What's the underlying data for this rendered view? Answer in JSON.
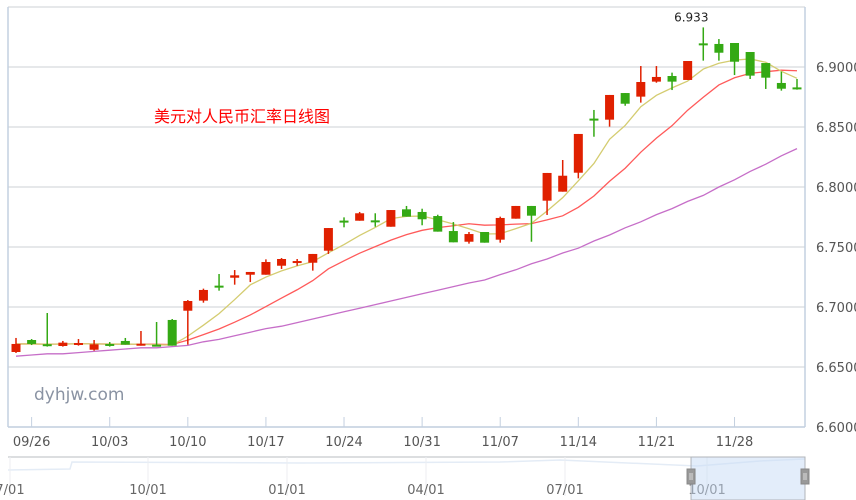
{
  "chart_data": {
    "type": "candlestick",
    "title": "美元对人民币汇率日线图",
    "watermark": "dyhjw.com",
    "ylim": [
      6.6,
      6.95
    ],
    "y_ticks": [
      "6.6000",
      "6.6500",
      "6.7000",
      "6.7500",
      "6.8000",
      "6.8500",
      "6.9000"
    ],
    "x_ticks": [
      "09/26",
      "10/03",
      "10/10",
      "10/17",
      "10/24",
      "10/31",
      "11/07",
      "11/14",
      "11/21",
      "11/28"
    ],
    "grid": true,
    "colors": {
      "up": "#e02000",
      "down": "#34a914",
      "ma_short": "#d4cc70",
      "ma_mid": "#ff5a5a",
      "ma_long": "#c66ec8",
      "grid": "#d6d9dd",
      "axis": "#c4d0e0"
    },
    "max_label": "6.933",
    "dates": [
      "09/23",
      "09/26",
      "09/27",
      "09/28",
      "09/29",
      "09/30",
      "10/03",
      "10/04",
      "10/05",
      "10/06",
      "10/07",
      "10/10",
      "10/11",
      "10/12",
      "10/13",
      "10/14",
      "10/17",
      "10/18",
      "10/19",
      "10/20",
      "10/21",
      "10/24",
      "10/25",
      "10/26",
      "10/27",
      "10/28",
      "10/31",
      "11/01",
      "11/02",
      "11/03",
      "11/04",
      "11/07",
      "11/08",
      "11/09",
      "11/10",
      "11/11",
      "11/14",
      "11/15",
      "11/16",
      "11/17",
      "11/18",
      "11/21",
      "11/22",
      "11/23",
      "11/24",
      "11/25",
      "11/28",
      "11/29",
      "11/30",
      "12/01",
      "12/02"
    ],
    "ohlc": [
      [
        6.6625,
        6.6742,
        6.6617,
        6.6692
      ],
      [
        6.6725,
        6.6733,
        6.6683,
        6.6692
      ],
      [
        6.669,
        6.695,
        6.667,
        6.668
      ],
      [
        6.6675,
        6.6717,
        6.667,
        6.6703
      ],
      [
        6.6685,
        6.6733,
        6.6678,
        6.67
      ],
      [
        6.6644,
        6.6725,
        6.6636,
        6.6689
      ],
      [
        6.6692,
        6.6708,
        6.667,
        6.6678
      ],
      [
        6.6717,
        6.6742,
        6.6686,
        6.6686
      ],
      [
        6.6678,
        6.68,
        6.6678,
        6.6694
      ],
      [
        6.6686,
        6.6875,
        6.6678,
        6.6678
      ],
      [
        6.6892,
        6.69,
        6.6678,
        6.6678
      ],
      [
        6.6969,
        6.7058,
        6.6686,
        6.705
      ],
      [
        6.7053,
        6.7153,
        6.7036,
        6.7142
      ],
      [
        6.7178,
        6.7275,
        6.7136,
        6.7175
      ],
      [
        6.7244,
        6.7308,
        6.7186,
        6.7264
      ],
      [
        6.7269,
        6.7292,
        6.7208,
        6.7292
      ],
      [
        6.7269,
        6.7397,
        6.7269,
        6.7375
      ],
      [
        6.7344,
        6.7408,
        6.7317,
        6.74
      ],
      [
        6.7369,
        6.74,
        6.7344,
        6.7383
      ],
      [
        6.7369,
        6.7442,
        6.7303,
        6.7442
      ],
      [
        6.7469,
        6.7658,
        6.7442,
        6.7658
      ],
      [
        6.772,
        6.7747,
        6.7664,
        6.7717
      ],
      [
        6.7719,
        6.7792,
        6.7719,
        6.7781
      ],
      [
        6.7722,
        6.7781,
        6.7669,
        6.7717
      ],
      [
        6.7669,
        6.7808,
        6.7669,
        6.7808
      ],
      [
        6.7814,
        6.7842,
        6.7753,
        6.7753
      ],
      [
        6.7792,
        6.7819,
        6.7681,
        6.7731
      ],
      [
        6.7758,
        6.7769,
        6.7628,
        6.7628
      ],
      [
        6.7633,
        6.7708,
        6.7539,
        6.7539
      ],
      [
        6.7544,
        6.7625,
        6.7528,
        6.7608
      ],
      [
        6.7625,
        6.7625,
        6.7536,
        6.7536
      ],
      [
        6.7561,
        6.7753,
        6.7536,
        6.7742
      ],
      [
        6.7736,
        6.7842,
        6.7736,
        6.7842
      ],
      [
        6.7842,
        6.7842,
        6.7544,
        6.7761
      ],
      [
        6.7886,
        6.8117,
        6.7767,
        6.8117
      ],
      [
        6.7961,
        6.8225,
        6.7961,
        6.8094
      ],
      [
        6.8119,
        6.8442,
        6.8072,
        6.8442
      ],
      [
        6.857,
        6.8642,
        6.8419,
        6.8567
      ],
      [
        6.8561,
        6.8767,
        6.8503,
        6.8767
      ],
      [
        6.8783,
        6.8783,
        6.8677,
        6.8694
      ],
      [
        6.8753,
        6.9008,
        6.8703,
        6.8875
      ],
      [
        6.8878,
        6.9008,
        6.8869,
        6.8917
      ],
      [
        6.8925,
        6.8953,
        6.8808,
        6.8878
      ],
      [
        6.8892,
        6.905,
        6.8892,
        6.905
      ],
      [
        6.9197,
        6.933,
        6.9053,
        6.9194
      ],
      [
        6.9192,
        6.9233,
        6.9053,
        6.9119
      ],
      [
        6.92,
        6.92,
        6.8933,
        6.9044
      ],
      [
        6.9125,
        6.9125,
        6.89,
        6.8928
      ],
      [
        6.9033,
        6.9033,
        6.8817,
        6.8911
      ],
      [
        6.8867,
        6.8961,
        6.8803,
        6.8819
      ],
      [
        6.883,
        6.89,
        6.8811,
        6.8827
      ]
    ],
    "ma_long": [
      6.659,
      6.66,
      6.661,
      6.661,
      6.662,
      6.663,
      6.664,
      6.665,
      6.666,
      6.666,
      6.667,
      6.668,
      6.671,
      6.673,
      6.676,
      6.679,
      6.682,
      6.684,
      6.687,
      6.69,
      6.693,
      6.696,
      6.699,
      6.702,
      6.705,
      6.708,
      6.711,
      6.714,
      6.717,
      6.72,
      6.7225,
      6.727,
      6.731,
      6.736,
      6.74,
      6.745,
      6.749,
      6.755,
      6.76,
      6.766,
      6.771,
      6.777,
      6.782,
      6.788,
      6.793,
      6.8,
      6.806,
      6.813,
      6.819,
      6.826,
      6.832
    ],
    "navigator": {
      "labels": [
        "7/01",
        "10/01",
        "01/01",
        "04/01",
        "07/01",
        "10/01"
      ],
      "selection_fraction": [
        0.857,
        1.0
      ]
    }
  }
}
